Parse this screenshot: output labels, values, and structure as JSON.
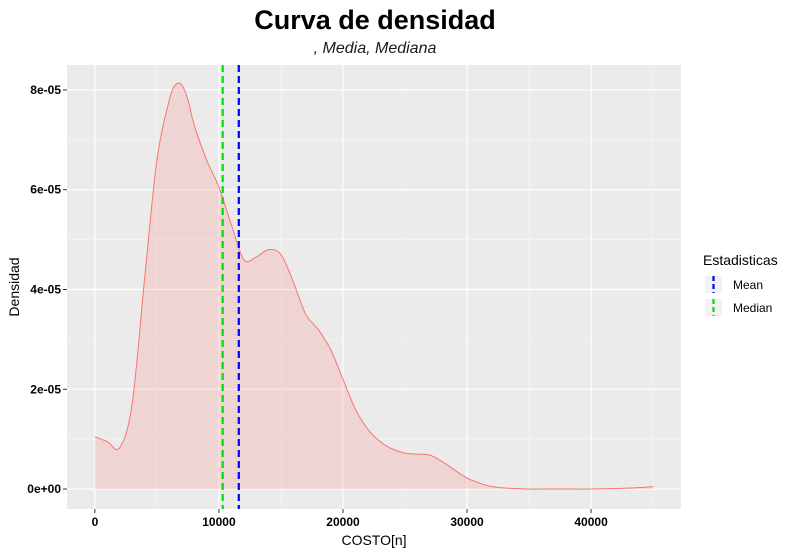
{
  "chart_data": {
    "type": "area",
    "title": "Curva de densidad",
    "subtitle": ", Media, Mediana",
    "xlabel": "COSTO[n]",
    "ylabel": "Densidad",
    "xlim": [
      -2250,
      47250
    ],
    "ylim": [
      -4e-06,
      8.5e-05
    ],
    "x_ticks": [
      0,
      10000,
      20000,
      30000,
      40000
    ],
    "x_tick_labels": [
      "0",
      "10000",
      "20000",
      "30000",
      "40000"
    ],
    "y_ticks": [
      0,
      2e-05,
      4e-05,
      6e-05,
      8e-05
    ],
    "y_tick_labels": [
      "0e+00",
      "2e-05",
      "4e-05",
      "6e-05",
      "8e-05"
    ],
    "grid": true,
    "density": {
      "x": [
        0,
        1000,
        2000,
        3000,
        4000,
        5000,
        6000,
        6500,
        7000,
        7500,
        8000,
        9000,
        10000,
        11000,
        12000,
        13000,
        14000,
        15000,
        16000,
        17000,
        18000,
        19000,
        20000,
        21000,
        22000,
        23000,
        24000,
        25000,
        26000,
        27000,
        28000,
        29000,
        30000,
        31000,
        32000,
        33000,
        34000,
        35000,
        36000,
        38000,
        40000,
        42000,
        44000,
        45000
      ],
      "y": [
        1.05e-05,
        9.5e-06,
        8.3e-06,
        1.7e-05,
        4.2e-05,
        6.6e-05,
        7.8e-05,
        8.1e-05,
        8.1e-05,
        7.8e-05,
        7.3e-05,
        6.6e-05,
        6.05e-05,
        5.3e-05,
        4.6e-05,
        4.65e-05,
        4.8e-05,
        4.7e-05,
        4.15e-05,
        3.5e-05,
        3.2e-05,
        2.8e-05,
        2.2e-05,
        1.6e-05,
        1.2e-05,
        9.5e-06,
        8e-06,
        7.2e-06,
        7e-06,
        6.8e-06,
        5.5e-06,
        3.8e-06,
        2.2e-06,
        1.2e-06,
        5e-07,
        2e-07,
        1e-07,
        0.0,
        0.0,
        0.0,
        0.0,
        1e-07,
        3e-07,
        5e-07
      ],
      "line_color": "#f8766d",
      "fill_color": "#f8766d"
    },
    "vlines": [
      {
        "name": "Mean",
        "x": 11600,
        "color": "#0000ff"
      },
      {
        "name": "Median",
        "x": 10300,
        "color": "#00dd00"
      }
    ],
    "legend": {
      "title": "Estadisticas",
      "position": "right",
      "items": [
        {
          "label": "Mean",
          "color": "#0000ff"
        },
        {
          "label": "Median",
          "color": "#00dd00"
        }
      ]
    },
    "colors": {
      "panel_background": "#ebebeb",
      "grid": "#ffffff"
    }
  }
}
